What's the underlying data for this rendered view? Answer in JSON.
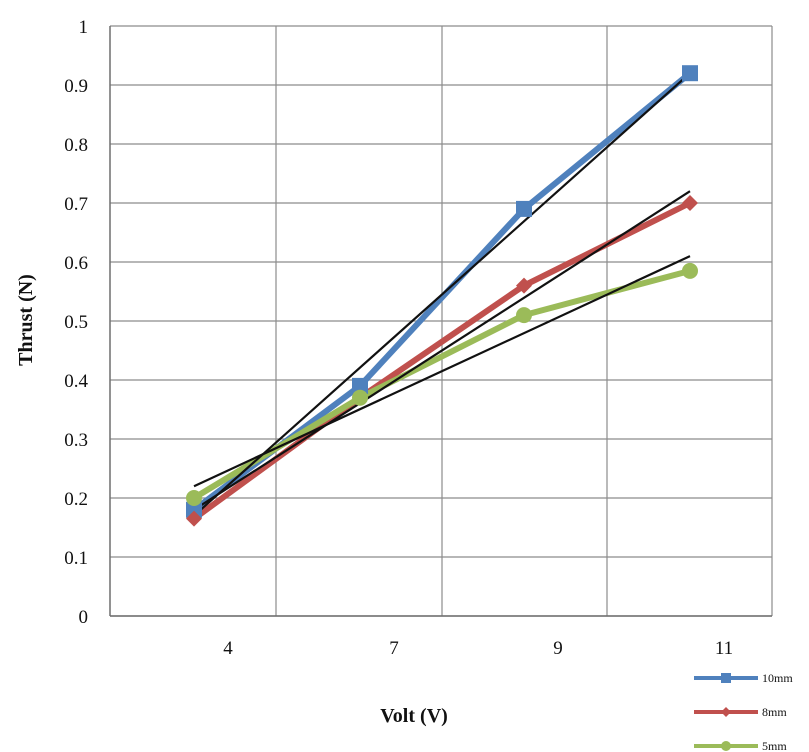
{
  "chart_data": {
    "type": "line",
    "x_categories": [
      "4",
      "7",
      "9",
      "11"
    ],
    "xlabel": "Volt (V)",
    "ylabel": "Thrust (N)",
    "ylim": [
      0,
      1
    ],
    "y_ticks": [
      "0",
      "0.1",
      "0.2",
      "0.3",
      "0.4",
      "0.5",
      "0.6",
      "0.7",
      "0.8",
      "0.9",
      "1"
    ],
    "grid": true,
    "legend_position": "bottom-right",
    "series": [
      {
        "name": "10mm",
        "color": "#4f81bd",
        "marker": "square",
        "values": [
          0.18,
          0.39,
          0.69,
          0.92
        ],
        "trendline": [
          0.17,
          0.42,
          0.67,
          0.92
        ]
      },
      {
        "name": "8mm",
        "color": "#c0504d",
        "marker": "diamond",
        "values": [
          0.165,
          0.37,
          0.56,
          0.7
        ],
        "trendline": [
          0.18,
          0.36,
          0.54,
          0.72
        ]
      },
      {
        "name": "5mm",
        "color": "#9bbb59",
        "marker": "circle",
        "values": [
          0.2,
          0.37,
          0.51,
          0.585
        ],
        "trendline": [
          0.22,
          0.35,
          0.48,
          0.61
        ]
      }
    ],
    "trendline_color": "#111111"
  }
}
